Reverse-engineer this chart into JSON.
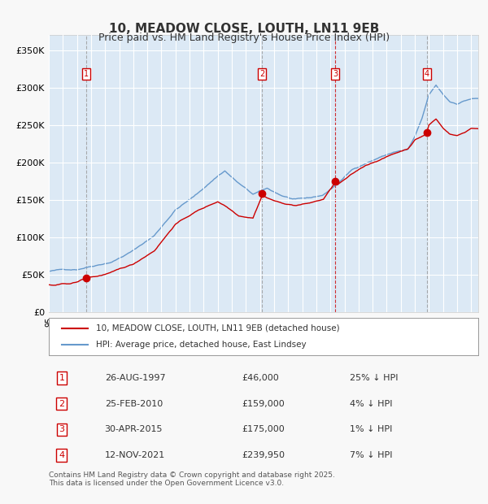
{
  "title": "10, MEADOW CLOSE, LOUTH, LN11 9EB",
  "subtitle": "Price paid vs. HM Land Registry's House Price Index (HPI)",
  "ylabel": "",
  "bg_color": "#dce9f5",
  "plot_bg": "#dce9f5",
  "red_color": "#cc0000",
  "blue_color": "#6699cc",
  "grid_color": "#ffffff",
  "ylim": [
    0,
    370000
  ],
  "yticks": [
    0,
    50000,
    100000,
    150000,
    200000,
    250000,
    300000,
    350000
  ],
  "ytick_labels": [
    "£0",
    "£50K",
    "£100K",
    "£150K",
    "£200K",
    "£250K",
    "£300K",
    "£350K"
  ],
  "sale_dates": [
    "1997-08-26",
    "2010-02-25",
    "2015-04-30",
    "2021-11-12"
  ],
  "sale_prices": [
    46000,
    159000,
    175000,
    239950
  ],
  "sale_labels": [
    "1",
    "2",
    "3",
    "4"
  ],
  "sale_pct": [
    "25%",
    "4%",
    "1%",
    "7%"
  ],
  "sale_dates_text": [
    "26-AUG-1997",
    "25-FEB-2010",
    "30-APR-2015",
    "12-NOV-2021"
  ],
  "sale_prices_text": [
    "£46,000",
    "£159,000",
    "£175,000",
    "£239,950"
  ],
  "footer": "Contains HM Land Registry data © Crown copyright and database right 2025.\nThis data is licensed under the Open Government Licence v3.0.",
  "legend_property": "10, MEADOW CLOSE, LOUTH, LN11 9EB (detached house)",
  "legend_hpi": "HPI: Average price, detached house, East Lindsey",
  "start_year": 1995.0,
  "end_year": 2025.5
}
